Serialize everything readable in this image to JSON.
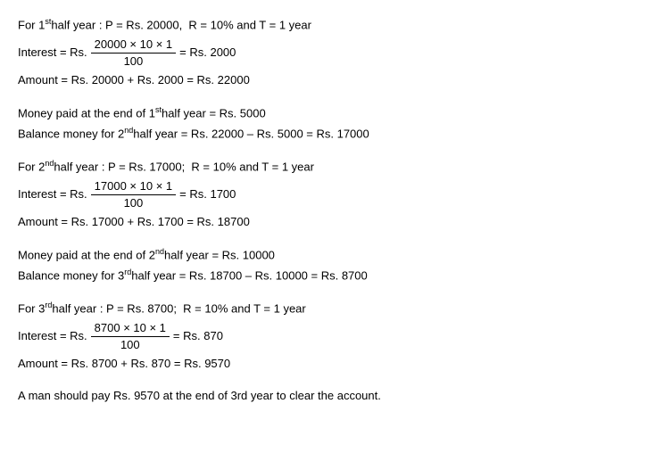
{
  "year1": {
    "heading": "For 1ˢᵗ half year : P = Rs. 20000,  R = 10% and T = 1 year",
    "interest_label": "Interest = Rs.",
    "frac_num": "20000 × 10 × 1",
    "frac_den": "100",
    "interest_result": "=   Rs. 2000",
    "amount": "Amount = Rs. 20000 + Rs. 2000 = Rs. 22000",
    "paid": "Money paid at the end of 1ˢᵗ half year = Rs. 5000",
    "balance": "Balance money for 2ⁿᵈ half year = Rs. 22000 – Rs. 5000 = Rs. 17000"
  },
  "year2": {
    "heading": "For 2ⁿᵈ half year : P = Rs. 17000;  R = 10% and T = 1 year",
    "interest_label": "Interest = Rs.",
    "frac_num": "17000 × 10 × 1",
    "frac_den": "100",
    "interest_result": "= Rs. 1700",
    "amount": "Amount = Rs. 17000 + Rs. 1700 = Rs. 18700",
    "paid": "Money paid at the end of 2ⁿᵈ half year = Rs. 10000",
    "balance": "Balance money for 3ʳᵈ half year = Rs. 18700 – Rs. 10000 = Rs. 8700"
  },
  "year3": {
    "heading": "For 3ʳᵈ half year : P = Rs. 8700;  R = 10% and T = 1 year",
    "interest_label": "Interest = Rs.",
    "frac_num": "8700 × 10 × 1",
    "frac_den": "100",
    "interest_result": "= Rs. 870",
    "amount": "Amount = Rs. 8700 + Rs. 870 = Rs. 9570"
  },
  "conclusion": "A man should pay Rs. 9570 at the end of 3rd year to clear the account."
}
